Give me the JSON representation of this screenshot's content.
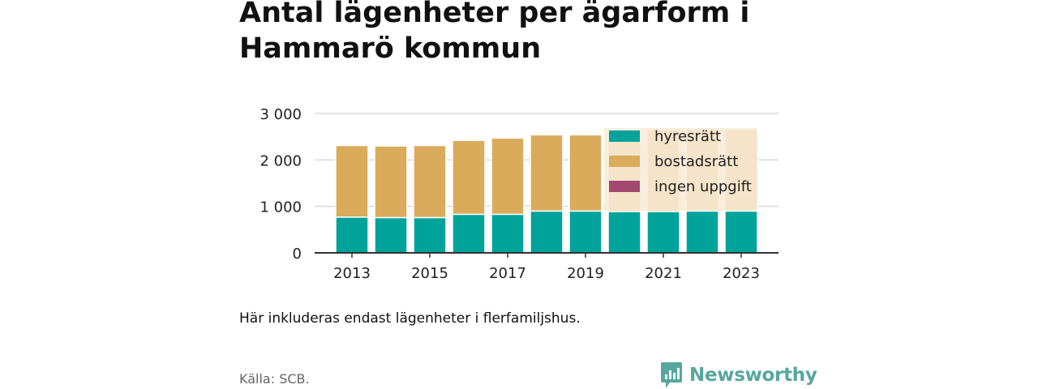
{
  "title": "Antal lägenheter per ägarform i Hammarö kommun",
  "note": "Här inkluderas endast lägenheter i flerfamiljshus.",
  "source": "Källa: SCB.",
  "brand": {
    "name": "Newsworthy",
    "icon": "bar-chart-speech-bubble-icon",
    "color": "#57a79e"
  },
  "chart_data": {
    "type": "bar",
    "stacked": true,
    "categories": [
      "2013",
      "2014",
      "2015",
      "2016",
      "2017",
      "2018",
      "2019",
      "2020",
      "2021",
      "2022",
      "2023"
    ],
    "x_tick_labels": [
      "2013",
      "2015",
      "2017",
      "2019",
      "2021",
      "2023"
    ],
    "ylim": [
      0,
      3000
    ],
    "y_ticks": [
      0,
      1000,
      2000,
      3000
    ],
    "y_tick_labels": [
      "0",
      "1 000",
      "2 000",
      "3 000"
    ],
    "grid": true,
    "legend_position": "top-right",
    "series": [
      {
        "name": "hyresrätt",
        "color": "#00a39a",
        "values": [
          770,
          760,
          760,
          830,
          830,
          900,
          900,
          890,
          890,
          900,
          900
        ]
      },
      {
        "name": "bostadsrätt",
        "color": "#d9ab5b",
        "values": [
          1540,
          1540,
          1550,
          1590,
          1640,
          1640,
          1640,
          1760,
          1760,
          1760,
          1760
        ]
      },
      {
        "name": "ingen uppgift",
        "color": "#a3486f",
        "values": [
          0,
          0,
          0,
          0,
          0,
          0,
          0,
          0,
          0,
          0,
          0
        ]
      }
    ]
  }
}
